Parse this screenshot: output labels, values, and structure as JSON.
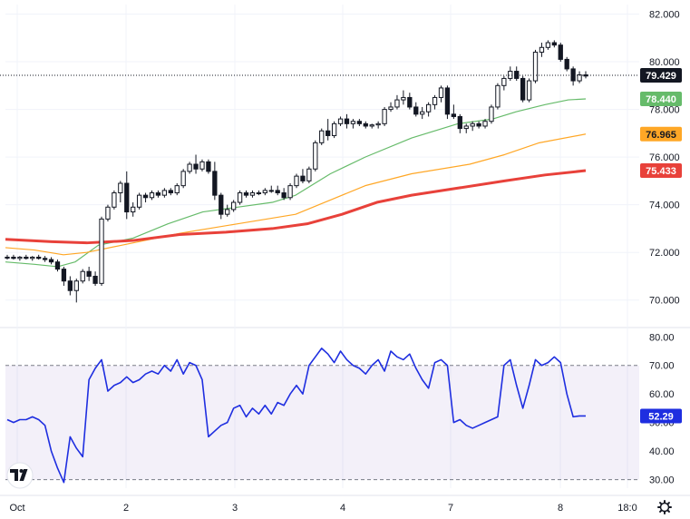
{
  "chart_data": [
    {
      "type": "candlestick",
      "time_labels": [
        "Oct",
        "2",
        "3",
        "4",
        "7",
        "8",
        "18:0"
      ],
      "price_ticks": [
        "82.000",
        "80.000",
        "78.000",
        "76.000",
        "74.000",
        "72.000",
        "70.000"
      ],
      "ylim": [
        69,
        82.4
      ],
      "last_price": {
        "label": "79.429",
        "value": 79.429
      },
      "grid": true,
      "candles": [
        [
          71.8,
          71.9,
          71.7,
          71.8
        ],
        [
          71.8,
          71.9,
          71.7,
          71.75
        ],
        [
          71.75,
          71.85,
          71.65,
          71.8
        ],
        [
          71.8,
          71.9,
          71.7,
          71.75
        ],
        [
          71.75,
          71.85,
          71.65,
          71.8
        ],
        [
          71.8,
          71.9,
          71.7,
          71.75
        ],
        [
          71.75,
          71.85,
          71.6,
          71.7
        ],
        [
          71.7,
          71.8,
          71.5,
          71.6
        ],
        [
          71.6,
          71.7,
          71.2,
          71.3
        ],
        [
          71.3,
          71.4,
          70.6,
          70.8
        ],
        [
          70.8,
          71.0,
          70.2,
          70.4
        ],
        [
          70.4,
          70.9,
          69.9,
          70.8
        ],
        [
          70.8,
          71.3,
          70.7,
          71.2
        ],
        [
          71.2,
          71.4,
          70.8,
          71.0
        ],
        [
          71.0,
          71.2,
          70.6,
          70.7
        ],
        [
          70.7,
          73.5,
          70.6,
          73.4
        ],
        [
          73.4,
          74.0,
          73.3,
          73.9
        ],
        [
          73.9,
          74.6,
          73.8,
          74.5
        ],
        [
          74.5,
          75.0,
          74.1,
          74.9
        ],
        [
          74.9,
          75.4,
          73.4,
          73.7
        ],
        [
          73.7,
          74.1,
          73.5,
          73.9
        ],
        [
          73.9,
          74.5,
          73.8,
          74.4
        ],
        [
          74.4,
          74.5,
          74.1,
          74.3
        ],
        [
          74.3,
          74.6,
          74.2,
          74.5
        ],
        [
          74.5,
          74.6,
          74.3,
          74.4
        ],
        [
          74.4,
          74.7,
          74.3,
          74.6
        ],
        [
          74.6,
          74.7,
          74.4,
          74.5
        ],
        [
          74.5,
          74.9,
          74.4,
          74.8
        ],
        [
          74.8,
          75.5,
          74.7,
          75.4
        ],
        [
          75.4,
          75.8,
          75.3,
          75.7
        ],
        [
          75.7,
          76.1,
          75.3,
          75.5
        ],
        [
          75.5,
          75.9,
          75.4,
          75.8
        ],
        [
          75.8,
          75.9,
          75.3,
          75.4
        ],
        [
          75.4,
          75.8,
          74.2,
          74.4
        ],
        [
          74.4,
          74.5,
          73.4,
          73.6
        ],
        [
          73.6,
          74.0,
          73.5,
          73.8
        ],
        [
          73.8,
          74.2,
          73.7,
          74.1
        ],
        [
          74.1,
          74.6,
          74.0,
          74.5
        ],
        [
          74.5,
          74.6,
          74.3,
          74.4
        ],
        [
          74.4,
          74.6,
          74.3,
          74.5
        ],
        [
          74.5,
          74.6,
          74.4,
          74.5
        ],
        [
          74.5,
          74.7,
          74.4,
          74.6
        ],
        [
          74.6,
          74.8,
          74.5,
          74.6
        ],
        [
          74.6,
          74.8,
          74.4,
          74.5
        ],
        [
          74.5,
          74.7,
          74.2,
          74.3
        ],
        [
          74.3,
          74.9,
          74.2,
          74.8
        ],
        [
          74.8,
          75.3,
          74.7,
          75.2
        ],
        [
          75.2,
          75.5,
          74.9,
          75.0
        ],
        [
          75.0,
          75.6,
          74.9,
          75.5
        ],
        [
          75.5,
          76.7,
          75.4,
          76.6
        ],
        [
          76.6,
          77.2,
          76.5,
          77.1
        ],
        [
          77.1,
          77.6,
          76.7,
          76.9
        ],
        [
          76.9,
          77.5,
          76.8,
          77.4
        ],
        [
          77.4,
          77.7,
          77.3,
          77.6
        ],
        [
          77.6,
          77.8,
          77.2,
          77.4
        ],
        [
          77.4,
          77.6,
          77.2,
          77.5
        ],
        [
          77.5,
          77.6,
          77.3,
          77.4
        ],
        [
          77.4,
          77.5,
          77.2,
          77.3
        ],
        [
          77.3,
          77.4,
          77.2,
          77.35
        ],
        [
          77.35,
          77.5,
          77.2,
          77.4
        ],
        [
          77.4,
          78.1,
          77.3,
          78.0
        ],
        [
          78.0,
          78.3,
          77.9,
          78.1
        ],
        [
          78.1,
          78.6,
          78.0,
          78.4
        ],
        [
          78.4,
          78.8,
          78.2,
          78.5
        ],
        [
          78.5,
          78.7,
          78.0,
          78.1
        ],
        [
          78.1,
          78.3,
          77.7,
          77.8
        ],
        [
          77.8,
          78.1,
          77.6,
          77.9
        ],
        [
          77.9,
          78.3,
          77.7,
          78.2
        ],
        [
          78.2,
          78.6,
          78.0,
          78.5
        ],
        [
          78.5,
          79.0,
          78.3,
          78.9
        ],
        [
          78.9,
          79.0,
          77.6,
          77.8
        ],
        [
          77.8,
          78.2,
          77.6,
          77.7
        ],
        [
          77.7,
          77.8,
          77.0,
          77.2
        ],
        [
          77.2,
          77.4,
          77.0,
          77.3
        ],
        [
          77.3,
          77.5,
          77.1,
          77.4
        ],
        [
          77.4,
          77.5,
          77.2,
          77.3
        ],
        [
          77.3,
          77.6,
          77.2,
          77.5
        ],
        [
          77.5,
          78.2,
          77.4,
          78.1
        ],
        [
          78.1,
          79.1,
          78.0,
          79.0
        ],
        [
          79.0,
          79.4,
          78.8,
          79.3
        ],
        [
          79.3,
          79.8,
          79.2,
          79.6
        ],
        [
          79.6,
          79.8,
          79.2,
          79.3
        ],
        [
          79.3,
          79.4,
          78.3,
          78.4
        ],
        [
          78.4,
          79.3,
          78.3,
          79.2
        ],
        [
          79.2,
          80.5,
          79.1,
          80.4
        ],
        [
          80.4,
          80.8,
          80.2,
          80.6
        ],
        [
          80.6,
          80.9,
          80.5,
          80.8
        ],
        [
          80.8,
          80.9,
          80.6,
          80.7
        ],
        [
          80.7,
          80.8,
          80.0,
          80.1
        ],
        [
          80.1,
          80.2,
          79.6,
          79.7
        ],
        [
          79.7,
          79.8,
          79.0,
          79.2
        ],
        [
          79.2,
          79.6,
          79.1,
          79.45
        ],
        [
          79.45,
          79.6,
          79.3,
          79.4
        ]
      ],
      "series": [
        {
          "label": "78.440",
          "color": "#66bb6a",
          "last": 78.44,
          "values": [
            [
              0,
              71.6
            ],
            [
              0.05,
              71.5
            ],
            [
              0.09,
              71.4
            ],
            [
              0.12,
              71.6
            ],
            [
              0.16,
              72.3
            ],
            [
              0.22,
              72.6
            ],
            [
              0.28,
              73.2
            ],
            [
              0.34,
              73.7
            ],
            [
              0.4,
              73.9
            ],
            [
              0.46,
              74.1
            ],
            [
              0.5,
              74.4
            ],
            [
              0.56,
              75.3
            ],
            [
              0.62,
              76.0
            ],
            [
              0.7,
              76.8
            ],
            [
              0.78,
              77.4
            ],
            [
              0.84,
              77.6
            ],
            [
              0.88,
              77.9
            ],
            [
              0.93,
              78.2
            ],
            [
              0.97,
              78.4
            ],
            [
              1.0,
              78.44
            ]
          ]
        },
        {
          "label": "76.965",
          "color": "#ffa726",
          "last": 76.965,
          "values": [
            [
              0,
              72.2
            ],
            [
              0.05,
              72.1
            ],
            [
              0.1,
              71.9
            ],
            [
              0.14,
              72.0
            ],
            [
              0.2,
              72.3
            ],
            [
              0.3,
              72.8
            ],
            [
              0.4,
              73.2
            ],
            [
              0.5,
              73.6
            ],
            [
              0.56,
              74.2
            ],
            [
              0.62,
              74.8
            ],
            [
              0.7,
              75.3
            ],
            [
              0.8,
              75.7
            ],
            [
              0.86,
              76.1
            ],
            [
              0.92,
              76.6
            ],
            [
              1.0,
              76.965
            ]
          ]
        },
        {
          "label": "75.433",
          "color": "#e8413a",
          "last": 75.433,
          "values": [
            [
              0,
              72.55
            ],
            [
              0.08,
              72.45
            ],
            [
              0.14,
              72.4
            ],
            [
              0.22,
              72.5
            ],
            [
              0.3,
              72.75
            ],
            [
              0.38,
              72.85
            ],
            [
              0.46,
              73.0
            ],
            [
              0.52,
              73.2
            ],
            [
              0.58,
              73.6
            ],
            [
              0.64,
              74.1
            ],
            [
              0.7,
              74.4
            ],
            [
              0.78,
              74.7
            ],
            [
              0.86,
              75.0
            ],
            [
              0.93,
              75.25
            ],
            [
              1.0,
              75.433
            ]
          ]
        }
      ]
    },
    {
      "type": "line",
      "ticks": [
        "80.00",
        "70.00",
        "60.00",
        "50.00",
        "40.00",
        "30.00"
      ],
      "ylim": [
        27,
        82
      ],
      "band": [
        30,
        70
      ],
      "last": {
        "label": "52.29",
        "value": 52.29
      },
      "series": [
        {
          "color": "#1e2ee0",
          "values": [
            51,
            50,
            51,
            51,
            52,
            51,
            49,
            40,
            34,
            29,
            45,
            41,
            38,
            65,
            69,
            72,
            61,
            63,
            64,
            66,
            64,
            65,
            67,
            68,
            67,
            70,
            68,
            72,
            67,
            71,
            70,
            65,
            45,
            47,
            49,
            50,
            55,
            56,
            52,
            55,
            53,
            56,
            53,
            57,
            56,
            60,
            63,
            60,
            70,
            73,
            76,
            74,
            71,
            75,
            72,
            70,
            69,
            67,
            70,
            72,
            68,
            75,
            73,
            72,
            74,
            69,
            65,
            62,
            71,
            72,
            70,
            50,
            51,
            49,
            48,
            49,
            50,
            51,
            52,
            70,
            72,
            63,
            55,
            63,
            72,
            70,
            71,
            73,
            71,
            60,
            52,
            52.3,
            52.29
          ]
        }
      ]
    }
  ]
}
